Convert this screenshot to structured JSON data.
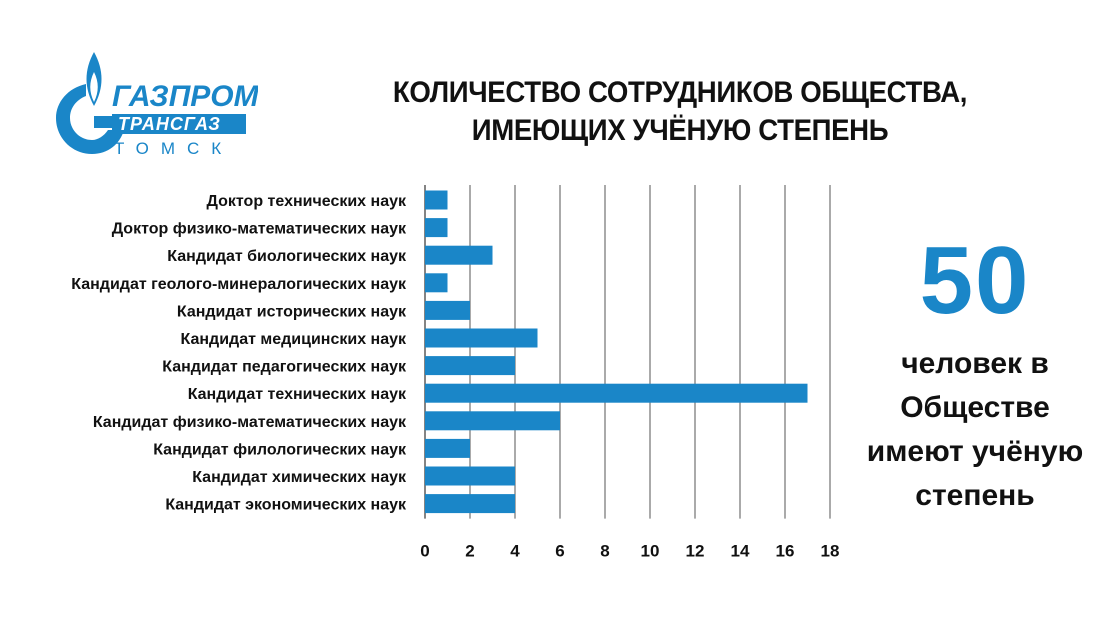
{
  "logo": {
    "brand_line": "ГАЗПРОМ",
    "sub_line": "ТРАНСГАЗ",
    "city_line": "ТОМСК",
    "brand_color": "#1a86c8"
  },
  "title": {
    "line1": "КОЛИЧЕСТВО СОТРУДНИКОВ ОБЩЕСТВА,",
    "line2": "ИМЕЮЩИХ УЧЁНУЮ СТЕПЕНЬ"
  },
  "stat": {
    "value": "50",
    "caption_line1": "человек в",
    "caption_line2": "Обществе",
    "caption_line3": "имеют учёную",
    "caption_line4": "степень"
  },
  "chart_data": {
    "type": "bar",
    "orientation": "horizontal",
    "bar_color": "#1a86c8",
    "grid": true,
    "xlim": [
      0,
      18
    ],
    "xticks": [
      0,
      2,
      4,
      6,
      8,
      10,
      12,
      14,
      16,
      18
    ],
    "categories": [
      "Доктор технических наук",
      "Доктор физико-математических наук",
      "Кандидат биологических наук",
      "Кандидат геолого-минералогических наук",
      "Кандидат исторических наук",
      "Кандидат медицинских наук",
      "Кандидат педагогических наук",
      "Кандидат технических наук",
      "Кандидат физико-математических наук",
      "Кандидат филологических наук",
      "Кандидат химических наук",
      "Кандидат экономических наук"
    ],
    "values": [
      1,
      1,
      3,
      1,
      2,
      5,
      4,
      17,
      6,
      2,
      4,
      4
    ]
  }
}
